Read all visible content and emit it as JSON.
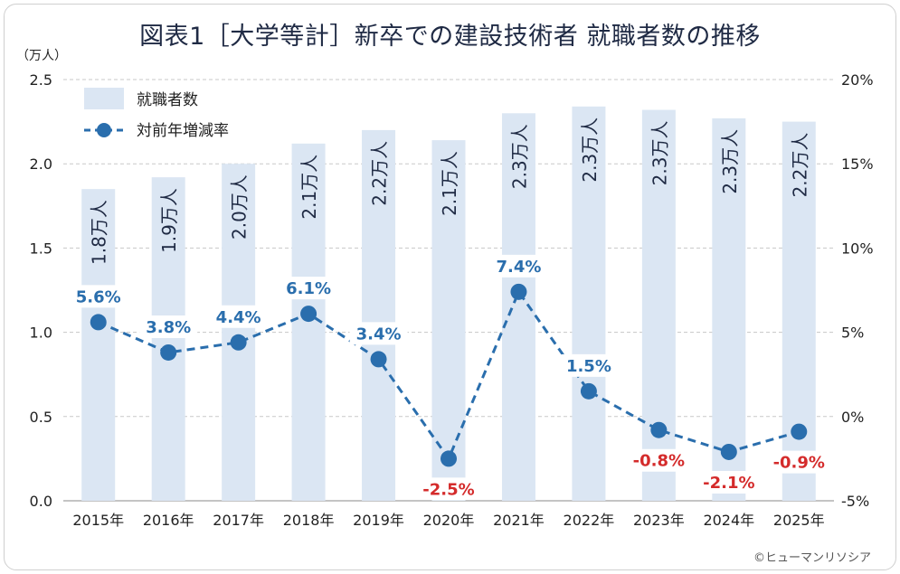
{
  "title": "図表1［大学等計］新卒での建設技術者 就職者数の推移",
  "credit": "©ヒューマンリソシア",
  "chart_data": {
    "type": "bar",
    "categories": [
      "2015年",
      "2016年",
      "2017年",
      "2018年",
      "2019年",
      "2020年",
      "2021年",
      "2022年",
      "2023年",
      "2024年",
      "2025年"
    ],
    "series": [
      {
        "name": "就職者数",
        "type": "bar",
        "axis": "left",
        "values": [
          1.85,
          1.92,
          2.0,
          2.12,
          2.2,
          2.14,
          2.3,
          2.34,
          2.32,
          2.27,
          2.25
        ],
        "labels": [
          "1.8万人",
          "1.9万人",
          "2.0万人",
          "2.1万人",
          "2.2万人",
          "2.1万人",
          "2.3万人",
          "2.3万人",
          "2.3万人",
          "2.3万人",
          "2.2万人"
        ]
      },
      {
        "name": "対前年増減率",
        "type": "line",
        "axis": "right",
        "values": [
          5.6,
          3.8,
          4.4,
          6.1,
          3.4,
          -2.5,
          7.4,
          1.5,
          -0.8,
          -2.1,
          -0.9
        ],
        "labels": [
          "5.6%",
          "3.8%",
          "4.4%",
          "6.1%",
          "3.4%",
          "-2.5%",
          "7.4%",
          "1.5%",
          "-0.8%",
          "-2.1%",
          "-0.9%"
        ]
      }
    ],
    "y_left": {
      "unit": "（万人）",
      "min": 0,
      "max": 2.5,
      "ticks": [
        "0.0",
        "0.5",
        "1.0",
        "1.5",
        "2.0",
        "2.5"
      ]
    },
    "y_right": {
      "min": -5,
      "max": 20,
      "ticks": [
        "-5%",
        "0%",
        "5%",
        "10%",
        "15%",
        "20%"
      ]
    },
    "legend_position": "top-left",
    "grid": true,
    "colors": {
      "bar": "#dbe6f3",
      "line": "#2a6ead",
      "positive_label": "#2a6ead",
      "negative_label": "#d42b2b",
      "bar_label": "#1f2a44",
      "grid": "#c8c8c8"
    }
  }
}
